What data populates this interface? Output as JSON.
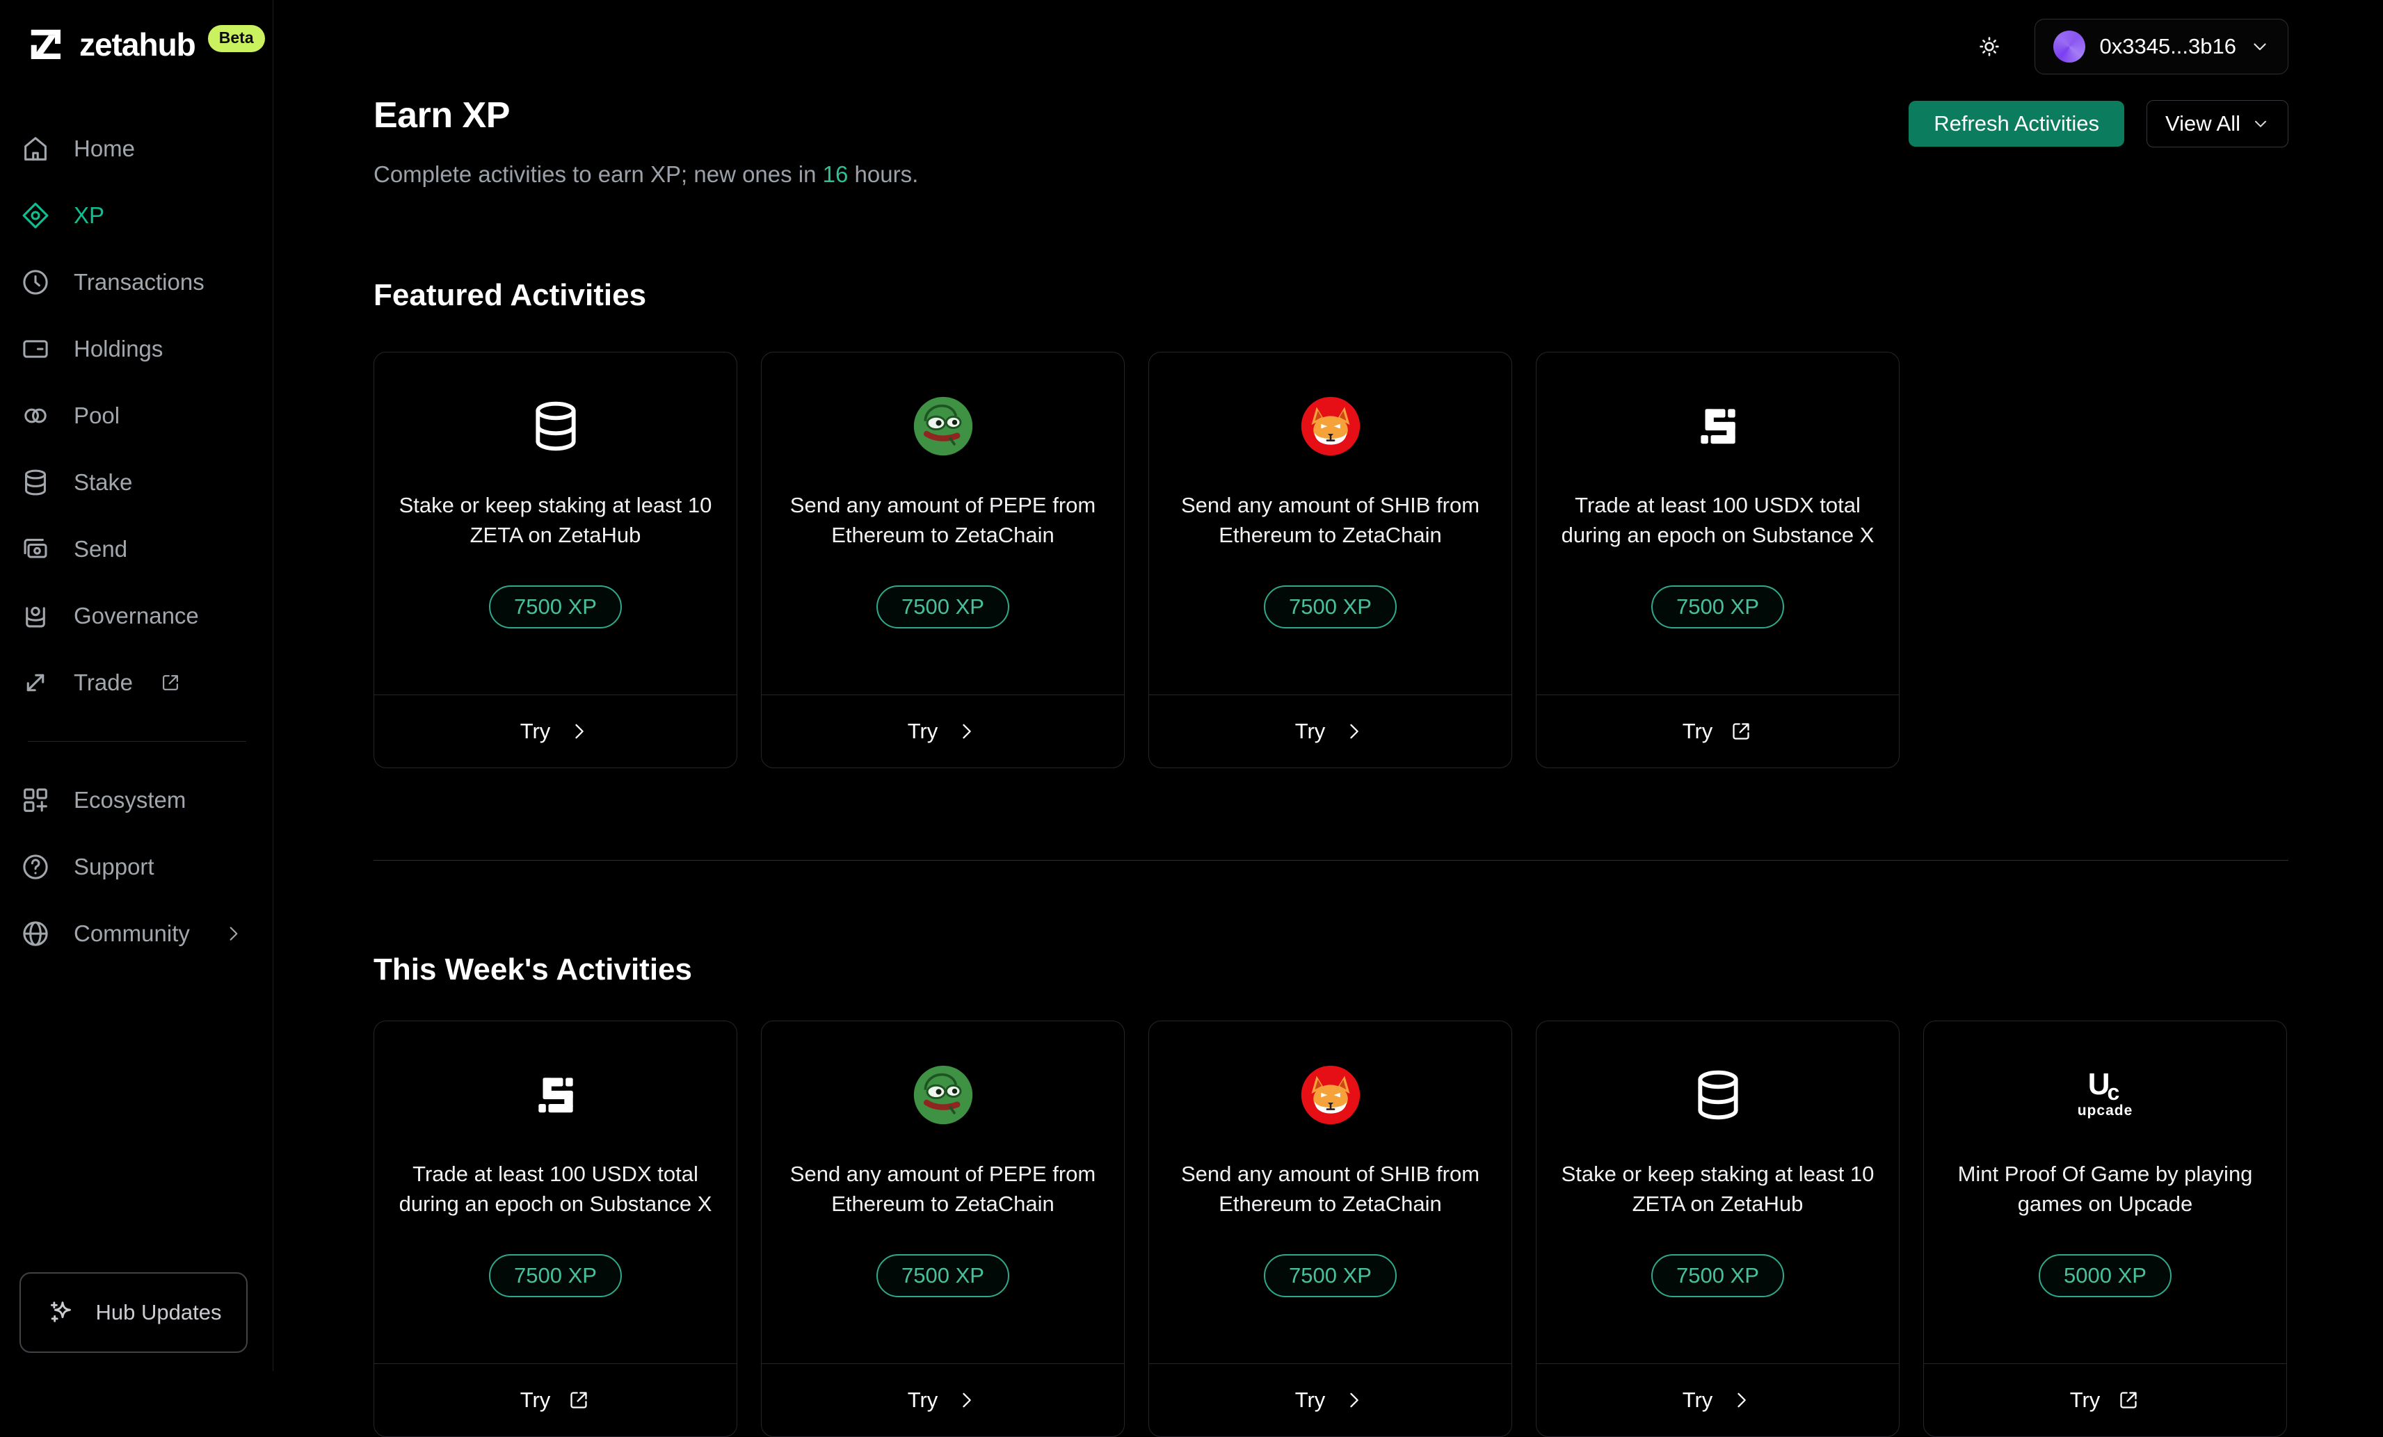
{
  "brand": {
    "name": "zetahub",
    "beta": "Beta"
  },
  "topbar": {
    "wallet_address": "0x3345...3b16"
  },
  "header": {
    "title": "Earn XP",
    "subtitle_prefix": "Complete activities to earn XP; new ones in ",
    "subtitle_highlight": "16",
    "subtitle_suffix": " hours.",
    "refresh_button": "Refresh Activities",
    "view_all_button": "View All"
  },
  "sidebar": {
    "main_items": [
      {
        "label": "Home",
        "icon": "home",
        "active": false
      },
      {
        "label": "XP",
        "icon": "xp",
        "active": true
      },
      {
        "label": "Transactions",
        "icon": "transactions",
        "active": false
      },
      {
        "label": "Holdings",
        "icon": "holdings",
        "active": false
      },
      {
        "label": "Pool",
        "icon": "pool",
        "active": false
      },
      {
        "label": "Stake",
        "icon": "database",
        "active": false
      },
      {
        "label": "Send",
        "icon": "send",
        "active": false
      },
      {
        "label": "Governance",
        "icon": "governance",
        "active": false
      },
      {
        "label": "Trade",
        "icon": "trade",
        "active": false,
        "external": true
      }
    ],
    "secondary_items": [
      {
        "label": "Ecosystem",
        "icon": "ecosystem"
      },
      {
        "label": "Support",
        "icon": "support"
      },
      {
        "label": "Community",
        "icon": "community",
        "chevron": true
      }
    ],
    "hub_updates": "Hub Updates"
  },
  "sections": {
    "featured": {
      "title": "Featured Activities",
      "cards": [
        {
          "icon": "database",
          "title": "Stake or keep staking at least 10 ZETA on ZetaHub",
          "xp": "7500 XP",
          "try_label": "Try",
          "action": "chevron"
        },
        {
          "icon": "pepe",
          "title": "Send any amount of PEPE from Ethereum to ZetaChain",
          "xp": "7500 XP",
          "try_label": "Try",
          "action": "chevron"
        },
        {
          "icon": "shib",
          "title": "Send any amount of SHIB from Ethereum to ZetaChain",
          "xp": "7500 XP",
          "try_label": "Try",
          "action": "chevron"
        },
        {
          "icon": "substance-x",
          "title": "Trade at least 100 USDX total during an epoch on Substance X",
          "xp": "7500 XP",
          "try_label": "Try",
          "action": "external"
        }
      ]
    },
    "weekly": {
      "title": "This Week's Activities",
      "cards": [
        {
          "icon": "substance-x",
          "title": "Trade at least 100 USDX total during an epoch on Substance X",
          "xp": "7500 XP",
          "try_label": "Try",
          "action": "external"
        },
        {
          "icon": "pepe",
          "title": "Send any amount of PEPE from Ethereum to ZetaChain",
          "xp": "7500 XP",
          "try_label": "Try",
          "action": "chevron"
        },
        {
          "icon": "shib",
          "title": "Send any amount of SHIB from Ethereum to ZetaChain",
          "xp": "7500 XP",
          "try_label": "Try",
          "action": "chevron"
        },
        {
          "icon": "database",
          "title": "Stake or keep staking at least 10 ZETA on ZetaHub",
          "xp": "7500 XP",
          "try_label": "Try",
          "action": "chevron"
        },
        {
          "icon": "upcade",
          "title": "Mint Proof Of Game by playing games on Upcade",
          "xp": "5000 XP",
          "try_label": "Try",
          "action": "external"
        }
      ]
    }
  },
  "upcade_logo": {
    "monogram_u": "U",
    "monogram_c": "c",
    "word": "upcade"
  },
  "colors": {
    "accent_green": "#0fbf92",
    "button_green": "#0b7c5e",
    "beta_lime": "#c9f25e",
    "xp_pill_border": "#2fa98a",
    "avatar_purple": "#8a56f0"
  }
}
